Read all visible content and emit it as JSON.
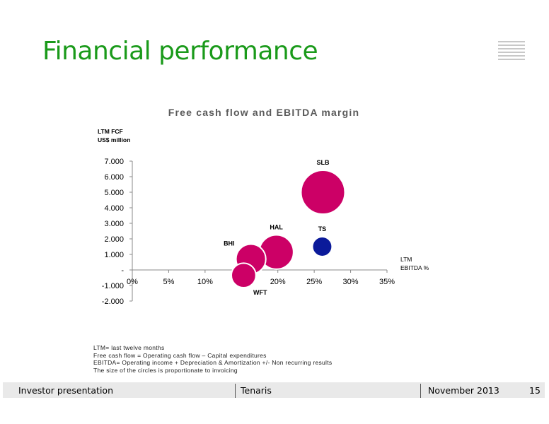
{
  "header": {
    "title": "Financial performance"
  },
  "chart_data": {
    "type": "scatter",
    "title": "Free cash flow and EBITDA margin",
    "ylabel": [
      "LTM FCF",
      "US$ million"
    ],
    "xlabel": [
      "LTM",
      "EBITDA %"
    ],
    "xlim": [
      0,
      35
    ],
    "ylim": [
      -2000,
      7000
    ],
    "x_ticks": [
      {
        "value": 0,
        "label": "0%"
      },
      {
        "value": 5,
        "label": "5%"
      },
      {
        "value": 10,
        "label": "10%"
      },
      {
        "value": 15,
        "label": "15%"
      },
      {
        "value": 20,
        "label": "20%"
      },
      {
        "value": 25,
        "label": "25%"
      },
      {
        "value": 30,
        "label": "30%"
      },
      {
        "value": 35,
        "label": "35%"
      }
    ],
    "y_ticks": [
      {
        "value": 7000,
        "label": "7.000"
      },
      {
        "value": 6000,
        "label": "6.000"
      },
      {
        "value": 5000,
        "label": "5.000"
      },
      {
        "value": 4000,
        "label": "4.000"
      },
      {
        "value": 3000,
        "label": "3.000"
      },
      {
        "value": 2000,
        "label": "2.000"
      },
      {
        "value": 1000,
        "label": "1.000"
      },
      {
        "value": 0,
        "label": "-"
      },
      {
        "value": -1000,
        "label": "-1.000"
      },
      {
        "value": -2000,
        "label": "-2.000"
      }
    ],
    "points": [
      {
        "label": "SLB",
        "x": 26.2,
        "y": 5000,
        "size": 1.0,
        "color": "#cc0066",
        "label_pos": "above"
      },
      {
        "label": "HAL",
        "x": 19.8,
        "y": 1150,
        "size": 0.78,
        "color": "#cc0066",
        "label_pos": "above"
      },
      {
        "label": "BHI",
        "x": 16.3,
        "y": 700,
        "size": 0.68,
        "color": "#cc0066",
        "label_pos": "above-left"
      },
      {
        "label": "WFT",
        "x": 15.3,
        "y": -350,
        "size": 0.56,
        "color": "#cc0066",
        "label_pos": "below-right"
      },
      {
        "label": "TS",
        "x": 26.1,
        "y": 1500,
        "size": 0.45,
        "color": "#0b1a9a",
        "label_pos": "above"
      }
    ],
    "grid": false,
    "legend": "none"
  },
  "footnotes": [
    "LTM= last twelve months",
    "Free cash flow = Operating cash flow – Capital expenditures",
    "EBITDA= Operating income + Depreciation & Amortization +/- Non recurring results",
    "The size of the circles is proportionate to invoicing"
  ],
  "footer": {
    "left": "Investor presentation",
    "center": "Tenaris",
    "date": "November 2013",
    "page": "15"
  }
}
